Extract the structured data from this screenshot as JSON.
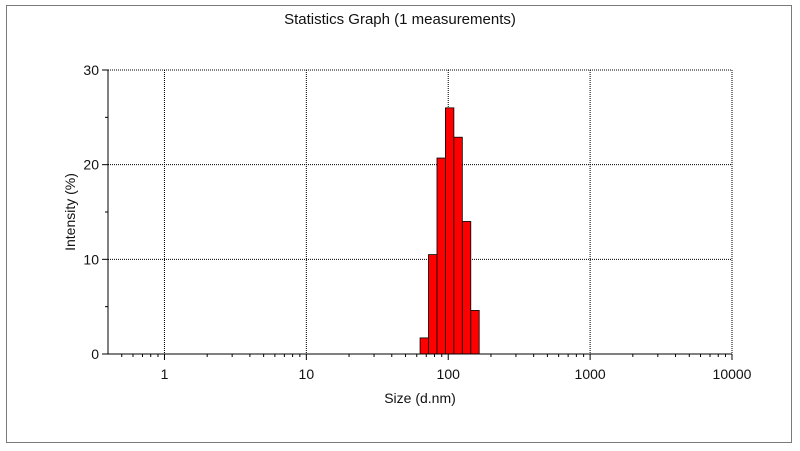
{
  "chart_data": {
    "type": "bar",
    "title": "Statistics Graph (1 measurements)",
    "xlabel": "Size (d.nm)",
    "ylabel": "Intensity (%)",
    "x_scale": "log",
    "xlim": [
      0.4,
      10000
    ],
    "ylim": [
      0,
      30
    ],
    "x_ticks": [
      1,
      10,
      100,
      1000,
      10000
    ],
    "x_tick_labels": [
      "1",
      "10",
      "100",
      "1000",
      "10000"
    ],
    "y_ticks": [
      0,
      10,
      20,
      30
    ],
    "y_tick_labels": [
      "0",
      "10",
      "20",
      "30"
    ],
    "grid": true,
    "bar_color": "#ff0000",
    "bins": [
      {
        "x_low": 63.3,
        "x_high": 72.6,
        "value": 1.7
      },
      {
        "x_low": 72.6,
        "x_high": 83.3,
        "value": 10.5
      },
      {
        "x_low": 83.3,
        "x_high": 95.5,
        "value": 20.7
      },
      {
        "x_low": 95.5,
        "x_high": 109.6,
        "value": 26.0
      },
      {
        "x_low": 109.6,
        "x_high": 125.7,
        "value": 22.9
      },
      {
        "x_low": 125.7,
        "x_high": 144.2,
        "value": 14.0
      },
      {
        "x_low": 144.2,
        "x_high": 165.3,
        "value": 4.6
      }
    ]
  }
}
